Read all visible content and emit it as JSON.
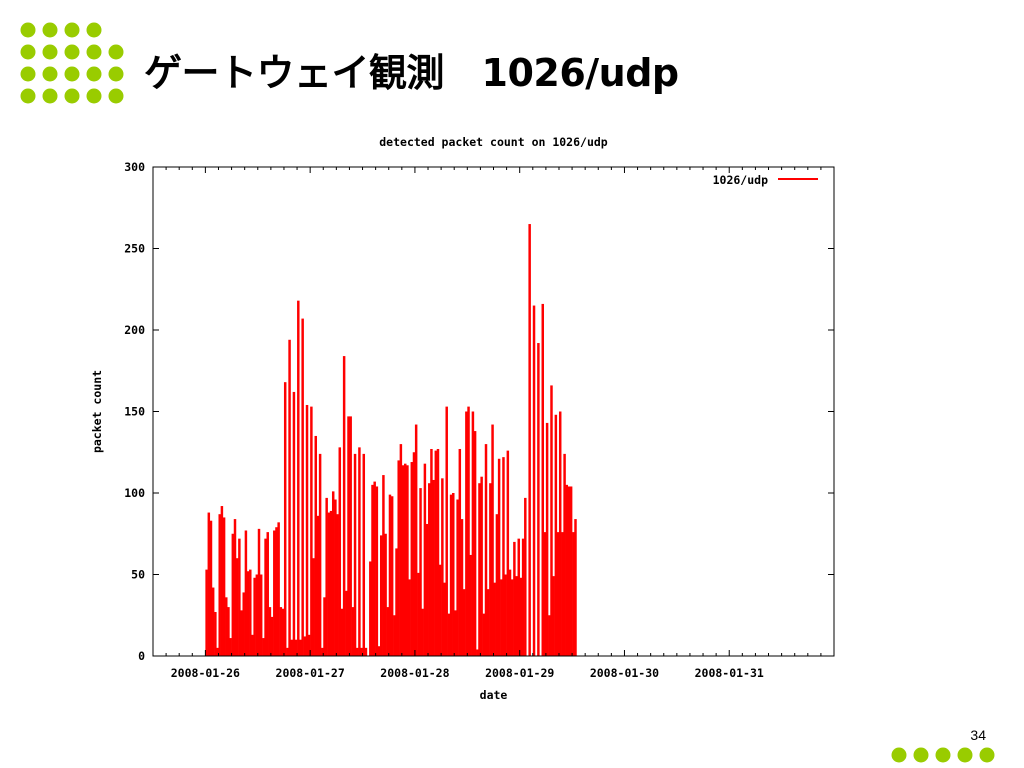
{
  "slide": {
    "title": "ゲートウェイ観測　1026/udp",
    "page_number": "34",
    "accent_color": "#99cc00"
  },
  "chart_data": {
    "type": "bar",
    "title": "detected packet count on 1026/udp",
    "xlabel": "date",
    "ylabel": "packet count",
    "ylim": [
      0,
      300
    ],
    "yticks": [
      0,
      50,
      100,
      150,
      200,
      250,
      300
    ],
    "xticks": [
      "2008-01-26",
      "2008-01-27",
      "2008-01-28",
      "2008-01-29",
      "2008-01-30",
      "2008-01-31"
    ],
    "xlim": [
      "2008-01-25 12:00",
      "2008-02-01 00:00"
    ],
    "bar_interval_minutes": 30,
    "grid": false,
    "legend_position": "top-right",
    "series": [
      {
        "name": "1026/udp",
        "color": "#ff0000",
        "start": "2008-01-26 00:00",
        "values": [
          53,
          88,
          83,
          42,
          27,
          5,
          87,
          92,
          85,
          36,
          30,
          11,
          75,
          84,
          60,
          72,
          28,
          39,
          77,
          52,
          53,
          13,
          48,
          50,
          78,
          50,
          11,
          72,
          76,
          30,
          24,
          77,
          79,
          82,
          30,
          29,
          168,
          5,
          194,
          10,
          162,
          10,
          218,
          10,
          207,
          12,
          154,
          13,
          153,
          60,
          135,
          86,
          124,
          5,
          36,
          97,
          88,
          89,
          101,
          96,
          87,
          128,
          29,
          184,
          40,
          147,
          147,
          30,
          124,
          5,
          128,
          5,
          124,
          5,
          0,
          58,
          105,
          107,
          104,
          6,
          74,
          111,
          75,
          30,
          99,
          98,
          25,
          66,
          120,
          130,
          117,
          118,
          117,
          47,
          119,
          125,
          142,
          51,
          103,
          29,
          118,
          81,
          106,
          127,
          108,
          126,
          127,
          56,
          109,
          45,
          153,
          26,
          99,
          100,
          28,
          96,
          127,
          84,
          41,
          150,
          153,
          62,
          150,
          138,
          4,
          106,
          110,
          26,
          130,
          41,
          106,
          142,
          45,
          87,
          121,
          47,
          122,
          50,
          126,
          53,
          47,
          70,
          49,
          72,
          48,
          72,
          97,
          0,
          265,
          0,
          215,
          0,
          192,
          0,
          216,
          76,
          143,
          25,
          166,
          49,
          148,
          76,
          150,
          76,
          124,
          105,
          104,
          104,
          76,
          84
        ]
      }
    ]
  }
}
